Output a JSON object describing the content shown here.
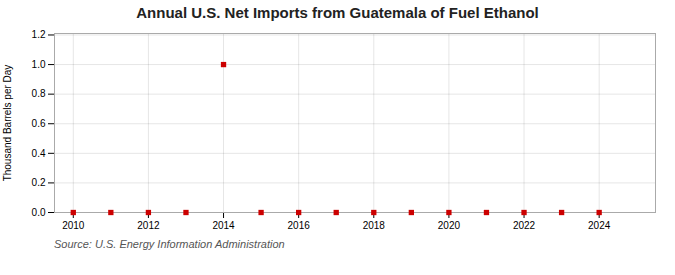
{
  "chart_data": {
    "type": "scatter",
    "title": "Annual U.S. Net Imports from Guatemala of Fuel Ethanol",
    "ylabel": "Thousand Barrels per Day",
    "annotation": "Source: U.S. Energy Information Administration",
    "x": [
      2010,
      2011,
      2012,
      2013,
      2014,
      2015,
      2016,
      2017,
      2018,
      2019,
      2020,
      2021,
      2022,
      2023,
      2024
    ],
    "values": [
      0.0,
      0.0,
      0.0,
      0.0,
      1.0,
      0.0,
      0.0,
      0.0,
      0.0,
      0.0,
      0.0,
      0.0,
      0.0,
      0.0,
      0.0
    ],
    "color": "#CC0000",
    "marker": "square",
    "xlim": [
      2009.5,
      2025.5
    ],
    "ylim": [
      0.0,
      1.21
    ],
    "xticks": [
      2010,
      2012,
      2014,
      2016,
      2018,
      2020,
      2022,
      2024
    ],
    "yticks": [
      {
        "value": 0.0,
        "label": "0.0"
      },
      {
        "value": 0.2,
        "label": "0.2"
      },
      {
        "value": 0.4,
        "label": "0.4"
      },
      {
        "value": 0.6,
        "label": "0.6"
      },
      {
        "value": 0.8,
        "label": "0.8"
      },
      {
        "value": 1.0,
        "label": "1.0"
      },
      {
        "value": 1.2,
        "label": "1.2"
      }
    ],
    "grid": true
  }
}
